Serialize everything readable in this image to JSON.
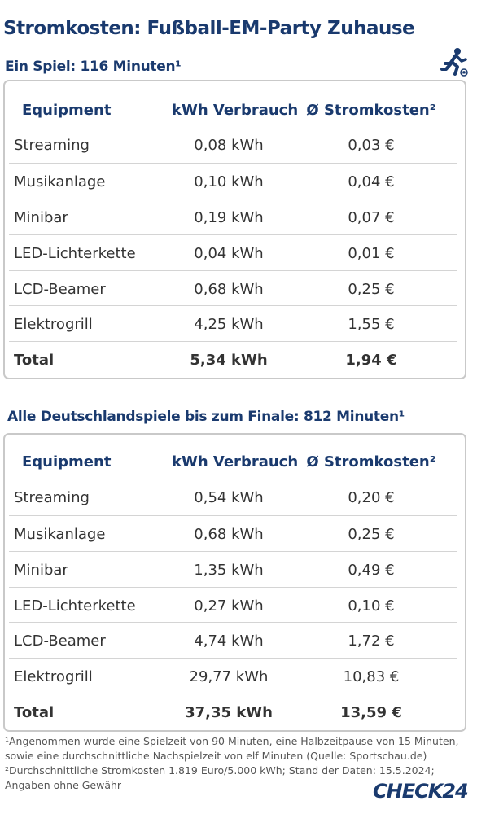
{
  "title": "Stromkosten: Fußball-EM-Party Zuhause",
  "section1": {
    "subtitle": "Ein Spiel: 116 Minuten¹",
    "headers": [
      "Equipment",
      "kWh Verbrauch",
      "Ø Stromkosten²"
    ],
    "rows": [
      [
        "Streaming",
        "0,08 kWh",
        "0,03 €"
      ],
      [
        "Musikanlage",
        "0,10 kWh",
        "0,04 €"
      ],
      [
        "Minibar",
        "0,19 kWh",
        "0,07 €"
      ],
      [
        "LED-Lichterkette",
        "0,04 kWh",
        "0,01 €"
      ],
      [
        "LCD-Beamer",
        "0,68 kWh",
        "0,25 €"
      ],
      [
        "Elektrogrill",
        "4,25 kWh",
        "1,55 €"
      ]
    ],
    "total": [
      "Total",
      "5,34 kWh",
      "1,94 €"
    ]
  },
  "section2": {
    "subtitle": "Alle Deutschlandspiele bis zum Finale: 812 Minuten¹",
    "headers": [
      "Equipment",
      "kWh Verbrauch",
      "Ø Stromkosten²"
    ],
    "rows": [
      [
        "Streaming",
        "0,54 kWh",
        "0,20 €"
      ],
      [
        "Musikanlage",
        "0,68 kWh",
        "0,25 €"
      ],
      [
        "Minibar",
        "1,35 kWh",
        "0,49 €"
      ],
      [
        "LED-Lichterkette",
        "0,27 kWh",
        "0,10 €"
      ],
      [
        "LCD-Beamer",
        "4,74 kWh",
        "1,72 €"
      ],
      [
        "Elektrogrill",
        "29,77 kWh",
        "10,83 €"
      ]
    ],
    "total": [
      "Total",
      "37,35 kWh",
      "13,59 €"
    ]
  },
  "footnotes": [
    "¹Angenommen wurde eine Spielzeit von 90 Minuten, eine Halbzeitpause von 15 Minuten,",
    "sowie eine durchschnittliche Nachspielzeit von elf Minuten (Quelle: Sportschau.de)",
    "²Durchschnittliche Stromkosten 1.819 Euro/5.000 kWh; Stand der Daten: 15.5.2024;",
    "Angaben ohne Gewähr"
  ],
  "logo": "CHECK24",
  "icons": {
    "runner": "soccer-player-icon"
  },
  "colors": {
    "heading": "#1a3a6e",
    "border": "#c9c9c9"
  }
}
